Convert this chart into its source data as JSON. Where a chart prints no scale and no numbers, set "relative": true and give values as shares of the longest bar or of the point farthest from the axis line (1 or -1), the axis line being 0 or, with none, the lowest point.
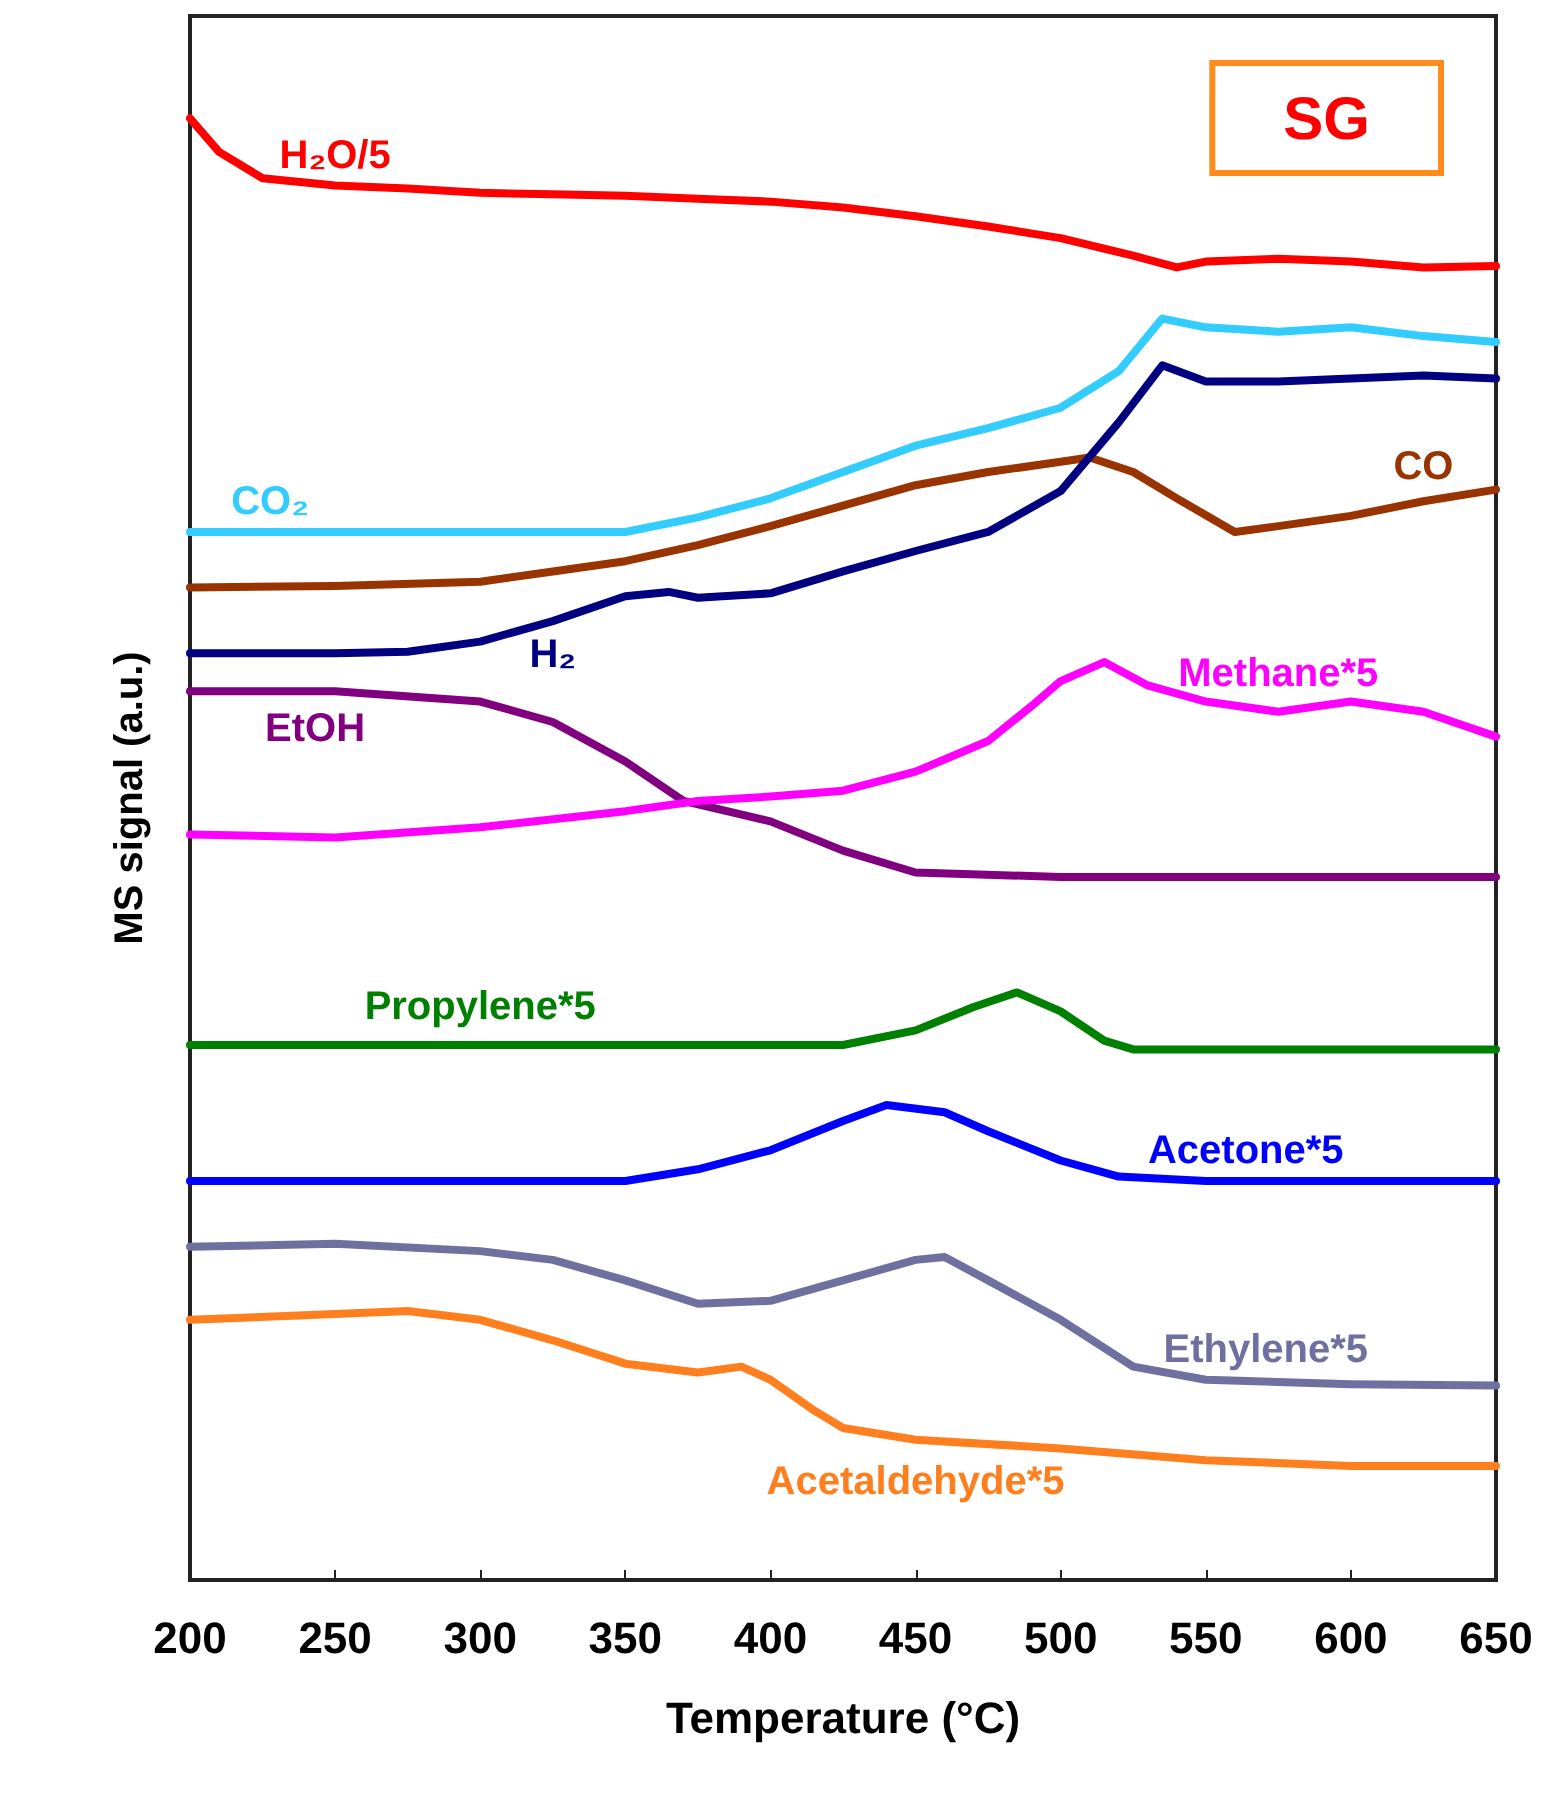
{
  "chart_data": {
    "type": "line",
    "relative": true,
    "xlabel": "Temperature (°C)",
    "ylabel": "MS signal (a.u.)",
    "xlim": [
      200,
      650
    ],
    "xticks": [
      200,
      250,
      300,
      350,
      400,
      450,
      500,
      550,
      600,
      650
    ],
    "grid": false,
    "legend": false,
    "marker": "none",
    "line_style": "solid",
    "annotations": [
      "SG"
    ],
    "series": [
      {
        "name": "H₂O/5",
        "color": "#ff0000",
        "x": [
          200,
          210,
          225,
          250,
          275,
          300,
          325,
          350,
          375,
          400,
          425,
          450,
          475,
          500,
          525,
          540,
          550,
          575,
          600,
          625,
          650
        ],
        "values": [
          1.0,
          0.977,
          0.959,
          0.954,
          0.952,
          0.949,
          0.948,
          0.947,
          0.945,
          0.943,
          0.939,
          0.933,
          0.926,
          0.918,
          0.906,
          0.898,
          0.902,
          0.904,
          0.902,
          0.898,
          0.899
        ]
      },
      {
        "name": "CO₂",
        "color": "#33ccff",
        "x": [
          200,
          350,
          375,
          400,
          425,
          450,
          475,
          500,
          520,
          535,
          550,
          575,
          600,
          625,
          650
        ],
        "values": [
          0.717,
          0.717,
          0.727,
          0.74,
          0.758,
          0.776,
          0.788,
          0.802,
          0.827,
          0.863,
          0.857,
          0.854,
          0.857,
          0.851,
          0.847
        ]
      },
      {
        "name": "CO",
        "color": "#993300",
        "x": [
          200,
          250,
          300,
          325,
          350,
          375,
          400,
          425,
          450,
          475,
          500,
          510,
          525,
          540,
          560,
          575,
          600,
          625,
          650
        ],
        "values": [
          0.679,
          0.68,
          0.683,
          0.69,
          0.697,
          0.708,
          0.721,
          0.735,
          0.749,
          0.758,
          0.765,
          0.768,
          0.758,
          0.74,
          0.717,
          0.721,
          0.728,
          0.738,
          0.746
        ]
      },
      {
        "name": "H₂",
        "color": "#000080",
        "x": [
          200,
          250,
          275,
          300,
          325,
          350,
          365,
          375,
          400,
          425,
          450,
          475,
          500,
          520,
          535,
          550,
          575,
          600,
          625,
          650
        ],
        "values": [
          0.634,
          0.634,
          0.635,
          0.642,
          0.656,
          0.673,
          0.676,
          0.672,
          0.675,
          0.69,
          0.704,
          0.717,
          0.745,
          0.792,
          0.831,
          0.82,
          0.82,
          0.822,
          0.824,
          0.822
        ]
      },
      {
        "name": "EtOH",
        "color": "#800080",
        "x": [
          200,
          250,
          300,
          325,
          350,
          370,
          400,
          425,
          450,
          500,
          650
        ],
        "values": [
          0.608,
          0.608,
          0.601,
          0.587,
          0.56,
          0.533,
          0.519,
          0.499,
          0.484,
          0.481,
          0.481
        ]
      },
      {
        "name": "Methane*5",
        "color": "#ff00ff",
        "x": [
          200,
          250,
          300,
          350,
          375,
          400,
          425,
          450,
          475,
          490,
          500,
          515,
          530,
          550,
          575,
          600,
          625,
          650
        ],
        "values": [
          0.51,
          0.508,
          0.515,
          0.526,
          0.533,
          0.536,
          0.54,
          0.553,
          0.574,
          0.598,
          0.615,
          0.628,
          0.612,
          0.601,
          0.594,
          0.601,
          0.594,
          0.577
        ]
      },
      {
        "name": "Propylene*5",
        "color": "#008000",
        "x": [
          200,
          300,
          425,
          450,
          470,
          485,
          500,
          515,
          525,
          650
        ],
        "values": [
          0.366,
          0.366,
          0.366,
          0.376,
          0.392,
          0.402,
          0.389,
          0.369,
          0.363,
          0.363
        ]
      },
      {
        "name": "Acetone*5",
        "color": "#0000ff",
        "x": [
          200,
          350,
          375,
          400,
          425,
          440,
          460,
          475,
          500,
          520,
          550,
          650
        ],
        "values": [
          0.273,
          0.273,
          0.281,
          0.294,
          0.314,
          0.325,
          0.32,
          0.307,
          0.287,
          0.276,
          0.273,
          0.273
        ]
      },
      {
        "name": "Ethylene*5",
        "color": "#7070a0",
        "x": [
          200,
          250,
          300,
          325,
          350,
          375,
          400,
          425,
          450,
          460,
          475,
          500,
          525,
          550,
          600,
          650
        ],
        "values": [
          0.228,
          0.23,
          0.225,
          0.219,
          0.205,
          0.189,
          0.191,
          0.205,
          0.219,
          0.221,
          0.205,
          0.178,
          0.146,
          0.137,
          0.134,
          0.133
        ]
      },
      {
        "name": "Acetaldehyde*5",
        "color": "#ff7f1f",
        "x": [
          200,
          250,
          275,
          300,
          325,
          350,
          375,
          390,
          400,
          415,
          425,
          450,
          500,
          550,
          600,
          650
        ],
        "values": [
          0.178,
          0.182,
          0.184,
          0.178,
          0.164,
          0.148,
          0.142,
          0.146,
          0.137,
          0.116,
          0.104,
          0.096,
          0.09,
          0.082,
          0.078,
          0.078
        ]
      }
    ]
  }
}
